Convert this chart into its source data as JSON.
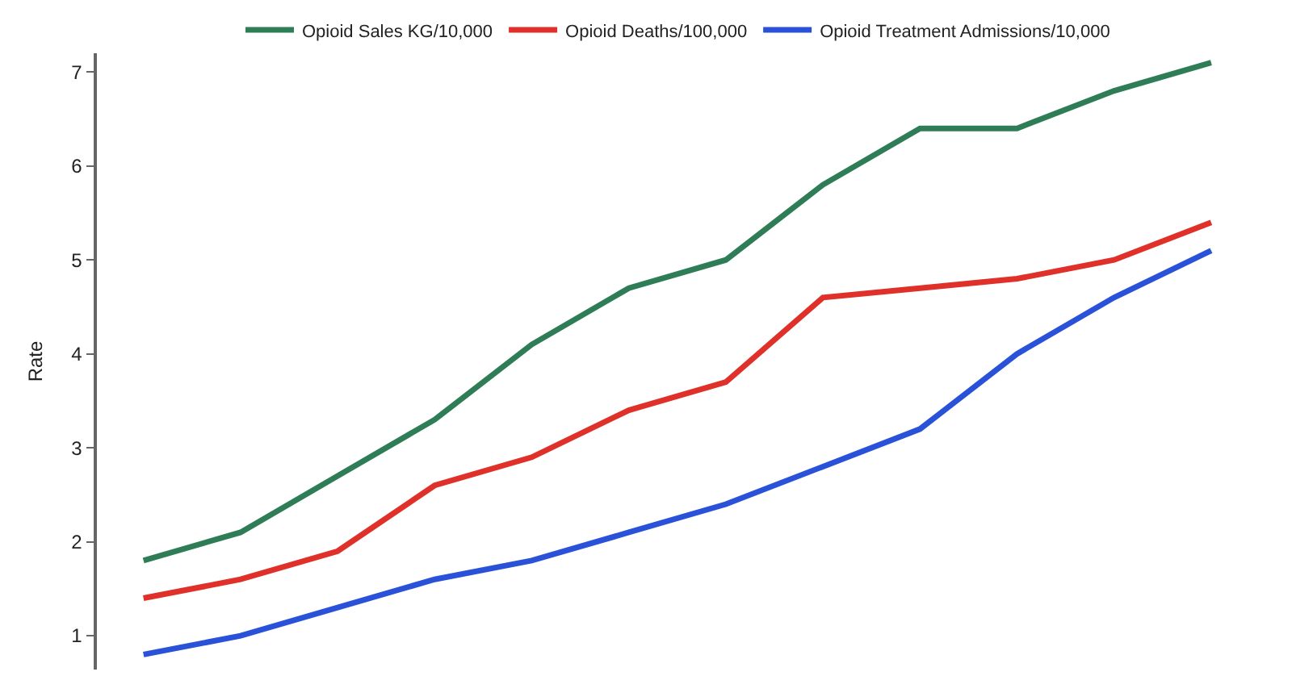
{
  "chart_data": {
    "type": "line",
    "ylabel": "Rate",
    "categories": [
      null,
      null,
      null,
      null,
      null,
      null,
      null,
      null,
      null,
      null,
      null,
      null
    ],
    "series": [
      {
        "name": "Opioid Sales KG/10,000",
        "color": "#2e7d57",
        "values": [
          1.8,
          2.1,
          2.7,
          3.3,
          4.1,
          4.7,
          5.0,
          5.8,
          6.4,
          6.4,
          6.8,
          7.1
        ]
      },
      {
        "name": "Opioid Deaths/100,000",
        "color": "#e0302a",
        "values": [
          1.4,
          1.6,
          1.9,
          2.6,
          2.9,
          3.4,
          3.7,
          4.6,
          4.7,
          4.8,
          5.0,
          5.4
        ]
      },
      {
        "name": "Opioid Treatment Admissions/10,000",
        "color": "#2a52d8",
        "values": [
          0.8,
          1.0,
          1.3,
          1.6,
          1.8,
          2.1,
          2.4,
          2.8,
          3.2,
          4.0,
          4.6,
          5.1
        ]
      }
    ],
    "ylim": [
      0.64,
      7.2
    ],
    "yticks": [
      1,
      2,
      3,
      4,
      5,
      6,
      7
    ],
    "legend": "top",
    "tick_labels": "y",
    "marker": "none",
    "line_style": "solid"
  }
}
